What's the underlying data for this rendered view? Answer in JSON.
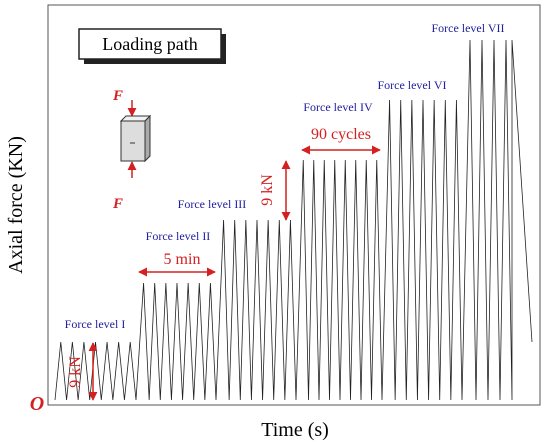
{
  "legend_box": "Loading path",
  "y_axis_label": "Axial force (KN)",
  "x_axis_label": "Time (s)",
  "origin_label": "O",
  "force_levels": [
    "Force level I",
    "Force level II",
    "Force level III",
    "Force level IV",
    "Force level VI",
    "Force level VII"
  ],
  "annotations": {
    "duration": "5 min",
    "cycles": "90 cycles",
    "increment_upper": "9 kN",
    "increment_lower": "9 kN"
  },
  "specimen": {
    "force_top": "F",
    "force_bottom": "F"
  }
}
